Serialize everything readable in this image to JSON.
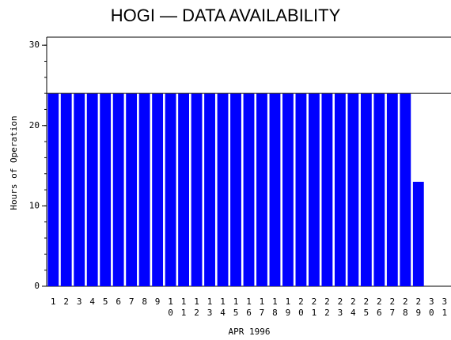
{
  "chart_data": {
    "type": "bar",
    "title": "HOGI — DATA AVAILABILITY",
    "x_label": "APR 1996",
    "y_label": "Hours of Operation",
    "categories": [
      "1",
      "2",
      "3",
      "4",
      "5",
      "6",
      "7",
      "8",
      "9",
      "10",
      "11",
      "12",
      "13",
      "14",
      "15",
      "16",
      "17",
      "18",
      "19",
      "20",
      "21",
      "22",
      "23",
      "24",
      "25",
      "26",
      "27",
      "28",
      "29",
      "30",
      "31"
    ],
    "values": [
      24,
      24,
      24,
      24,
      24,
      24,
      24,
      24,
      24,
      24,
      24,
      24,
      24,
      24,
      24,
      24,
      24,
      24,
      24,
      24,
      24,
      24,
      24,
      24,
      24,
      24,
      24,
      24,
      13,
      null,
      null
    ],
    "color": "#0000ff",
    "reference_line": 24,
    "ylim": [
      0,
      31
    ],
    "yticks": [
      0,
      10,
      20,
      30
    ],
    "grid": false
  }
}
